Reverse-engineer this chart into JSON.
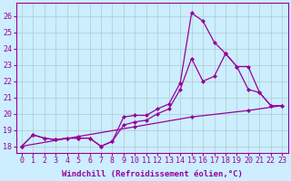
{
  "background_color": "#cceeff",
  "line_color": "#990099",
  "grid_color": "#aacccc",
  "xlabel": "Windchill (Refroidissement éolien,°C)",
  "ylabel_ticks": [
    18,
    19,
    20,
    21,
    22,
    23,
    24,
    25,
    26
  ],
  "xtick_labels": [
    "0",
    "1",
    "2",
    "3",
    "4",
    "5",
    "6",
    "7",
    "8",
    "9",
    "10",
    "11",
    "12",
    "13",
    "14",
    "15",
    "16",
    "17",
    "18",
    "19",
    "20",
    "21",
    "22",
    "23"
  ],
  "xlim": [
    -0.5,
    23.5
  ],
  "ylim": [
    17.6,
    26.8
  ],
  "line1_x": [
    0,
    1,
    2,
    3,
    4,
    5,
    6,
    7,
    8,
    9,
    10,
    11,
    12,
    13,
    14,
    15,
    16,
    17,
    18,
    19,
    20,
    21,
    22
  ],
  "line1_y": [
    18.0,
    18.7,
    18.5,
    18.4,
    18.5,
    18.5,
    18.5,
    18.0,
    18.3,
    19.8,
    19.9,
    19.9,
    20.3,
    20.6,
    21.9,
    26.2,
    25.7,
    24.4,
    23.7,
    22.9,
    21.5,
    21.3,
    20.5
  ],
  "line2_x": [
    0,
    1,
    2,
    3,
    4,
    5,
    6,
    7,
    8,
    9,
    10,
    11,
    12,
    13,
    14,
    15,
    16,
    17,
    18,
    19,
    20,
    21,
    22,
    23
  ],
  "line2_y": [
    18.0,
    18.7,
    18.5,
    18.4,
    18.5,
    18.5,
    18.5,
    18.0,
    18.3,
    19.3,
    19.5,
    19.6,
    20.0,
    20.3,
    21.5,
    23.4,
    22.0,
    22.3,
    23.7,
    22.9,
    22.9,
    21.3,
    20.5,
    20.5
  ],
  "line3_x": [
    0,
    5,
    10,
    15,
    20,
    23
  ],
  "line3_y": [
    18.0,
    18.6,
    19.2,
    19.8,
    20.2,
    20.5
  ],
  "marker": "D",
  "markersize": 2.0,
  "linewidth": 0.9,
  "xlabel_fontsize": 6.5,
  "tick_fontsize": 6.0
}
